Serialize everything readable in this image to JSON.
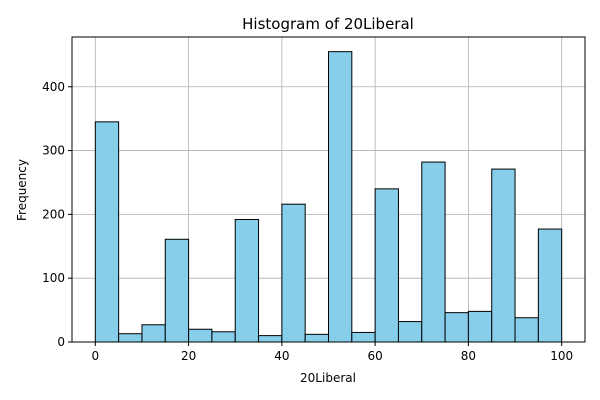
{
  "chart_data": {
    "type": "bar",
    "title": "Histogram of 20Liberal",
    "xlabel": "20Liberal",
    "ylabel": "Frequency",
    "xlim": [
      -5,
      105
    ],
    "ylim": [
      0,
      478
    ],
    "xticks": [
      0,
      20,
      40,
      60,
      80,
      100
    ],
    "yticks": [
      0,
      100,
      200,
      300,
      400
    ],
    "grid": true,
    "bar_color": "#87ceeb",
    "edge_color": "#000000",
    "bins": [
      0,
      5,
      10,
      15,
      20,
      25,
      30,
      35,
      40,
      45,
      50,
      55,
      60,
      65,
      70,
      75,
      80,
      85,
      90,
      95,
      100
    ],
    "counts": [
      345,
      13,
      27,
      161,
      20,
      16,
      192,
      10,
      216,
      12,
      455,
      15,
      240,
      32,
      282,
      46,
      48,
      271,
      38,
      177
    ]
  }
}
